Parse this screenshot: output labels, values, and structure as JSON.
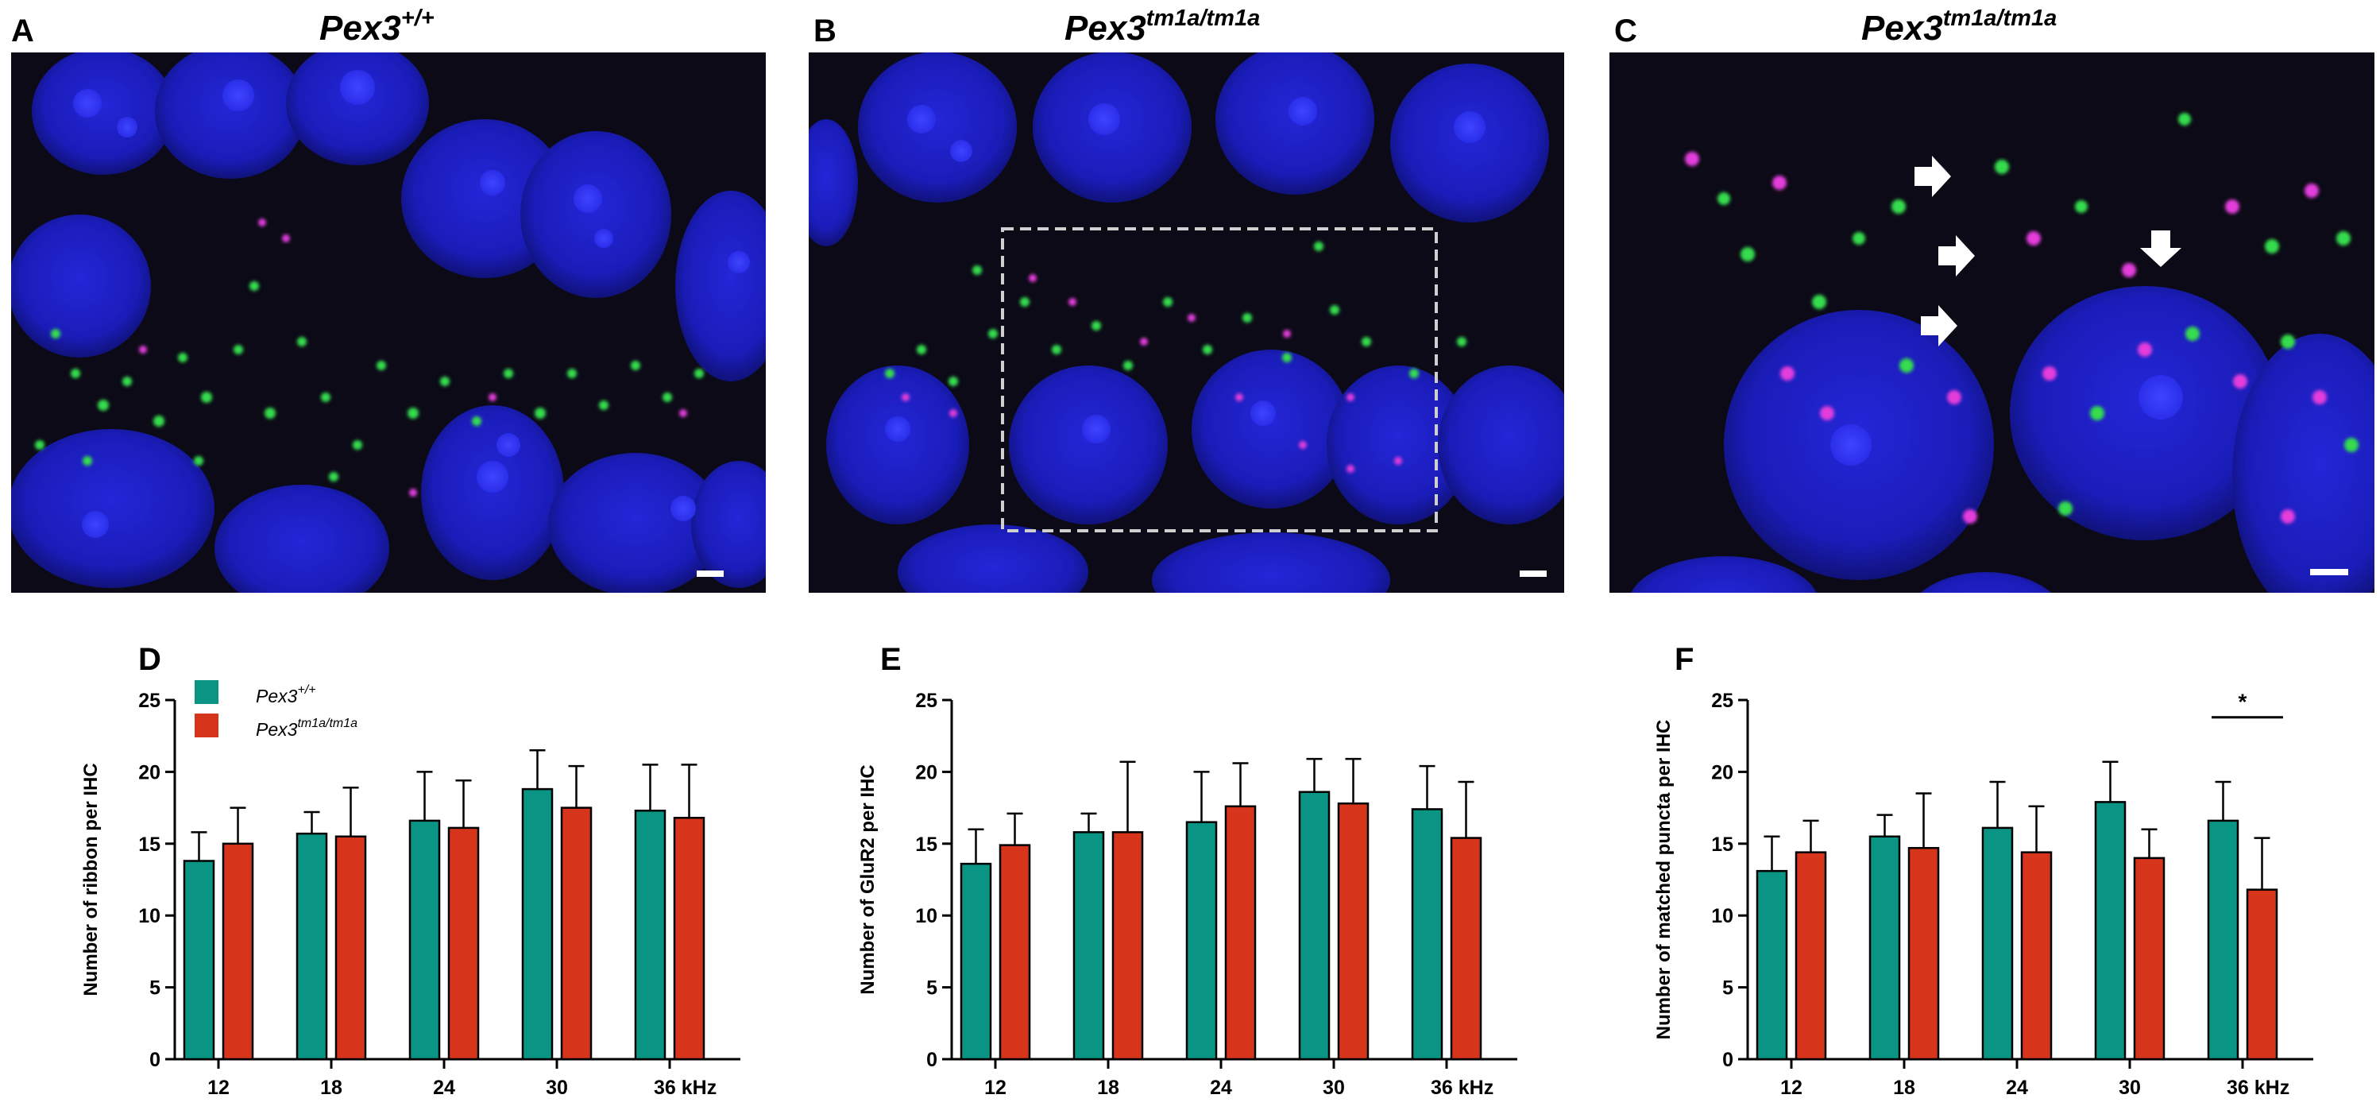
{
  "colors": {
    "wildtype": "#0a9484",
    "mutant": "#d6351b",
    "nucleus": "#1c1fc8",
    "ribbon": "#e43cdc",
    "glur2": "#2fd64a",
    "background": "#0a0a14"
  },
  "image_panels": [
    {
      "letter": "A",
      "title_base": "Pex3",
      "title_sup": "+/+"
    },
    {
      "letter": "B",
      "title_base": "Pex3",
      "title_sup": "tm1a/tm1a"
    },
    {
      "letter": "C",
      "title_base": "Pex3",
      "title_sup": "tm1a/tm1a"
    }
  ],
  "legend": [
    {
      "base": "Pex3",
      "sup": "+/+",
      "color_key": "wildtype"
    },
    {
      "base": "Pex3",
      "sup": "tm1a/tm1a",
      "color_key": "mutant"
    }
  ],
  "chart_data": [
    {
      "letter": "D",
      "type": "bar",
      "title": "",
      "ylabel": "Number of ribbon per IHC",
      "xlabel": "",
      "ylim": [
        0,
        25
      ],
      "yticks": [
        0,
        5,
        10,
        15,
        20,
        25
      ],
      "categories": [
        "12",
        "18",
        "24",
        "30",
        "36 kHz"
      ],
      "series": [
        {
          "name": "Pex3+/+",
          "values": [
            13.8,
            15.7,
            16.6,
            18.8,
            17.3
          ],
          "errors": [
            2.0,
            1.5,
            3.4,
            2.7,
            3.2
          ]
        },
        {
          "name": "Pex3tm1a/tm1a",
          "values": [
            15.0,
            15.5,
            16.1,
            17.5,
            16.8
          ],
          "errors": [
            2.5,
            3.4,
            3.3,
            2.9,
            3.7
          ]
        }
      ],
      "significance": null
    },
    {
      "letter": "E",
      "type": "bar",
      "title": "",
      "ylabel": "Number of GluR2 per IHC",
      "xlabel": "",
      "ylim": [
        0,
        25
      ],
      "yticks": [
        0,
        5,
        10,
        15,
        20,
        25
      ],
      "categories": [
        "12",
        "18",
        "24",
        "30",
        "36 kHz"
      ],
      "series": [
        {
          "name": "Pex3+/+",
          "values": [
            13.6,
            15.8,
            16.5,
            18.6,
            17.4
          ],
          "errors": [
            2.4,
            1.3,
            3.5,
            2.3,
            3.0
          ]
        },
        {
          "name": "Pex3tm1a/tm1a",
          "values": [
            14.9,
            15.8,
            17.6,
            17.8,
            15.4
          ],
          "errors": [
            2.2,
            4.9,
            3.0,
            3.1,
            3.9
          ]
        }
      ],
      "significance": null
    },
    {
      "letter": "F",
      "type": "bar",
      "title": "",
      "ylabel": "Number of matched puncta per IHC",
      "xlabel": "",
      "ylim": [
        0,
        25
      ],
      "yticks": [
        0,
        5,
        10,
        15,
        20,
        25
      ],
      "categories": [
        "12",
        "18",
        "24",
        "30",
        "36 kHz"
      ],
      "series": [
        {
          "name": "Pex3+/+",
          "values": [
            13.1,
            15.5,
            16.1,
            17.9,
            16.6
          ],
          "errors": [
            2.4,
            1.5,
            3.2,
            2.8,
            2.7
          ]
        },
        {
          "name": "Pex3tm1a/tm1a",
          "values": [
            14.4,
            14.7,
            14.4,
            14.0,
            11.8
          ],
          "errors": [
            2.2,
            3.8,
            3.2,
            2.0,
            3.6
          ]
        }
      ],
      "significance": {
        "category_index": 4,
        "label": "*"
      }
    }
  ]
}
